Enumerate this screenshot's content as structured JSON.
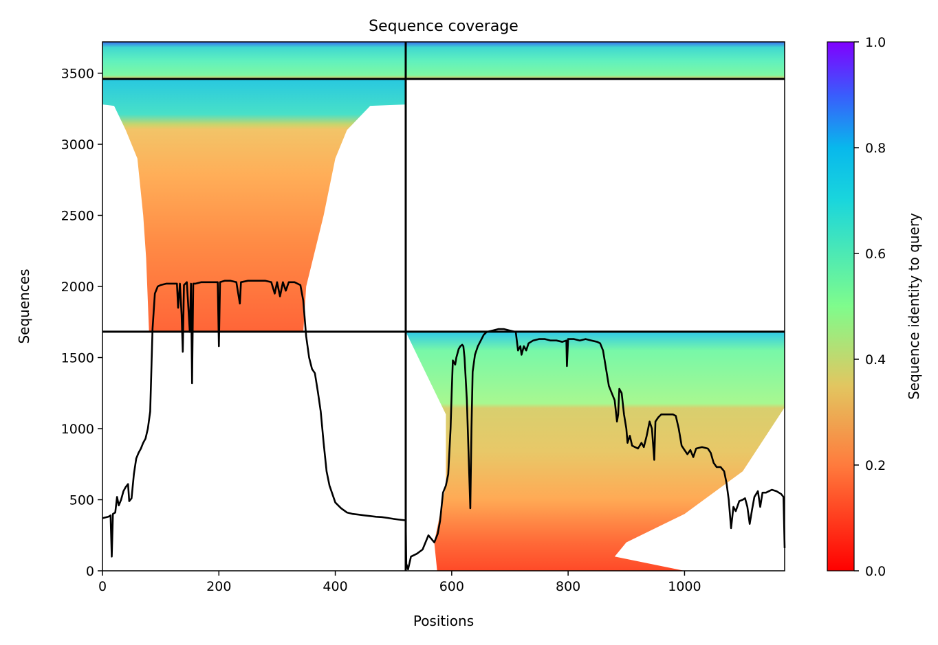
{
  "chart_data": {
    "type": "heatmap",
    "title": "Sequence coverage",
    "xlabel": "Positions",
    "ylabel": "Sequences",
    "xlim": [
      0,
      1172
    ],
    "ylim": [
      0,
      3720
    ],
    "xticks": [
      0,
      200,
      400,
      600,
      800,
      1000
    ],
    "yticks": [
      0,
      500,
      1000,
      1500,
      2000,
      2500,
      3000,
      3500
    ],
    "grid": false,
    "colorbar": {
      "label": "Sequence identity to query",
      "min": 0.0,
      "max": 1.0,
      "ticks": [
        "0.0",
        "0.2",
        "0.4",
        "0.6",
        "0.8",
        "1.0"
      ],
      "colormap": "rainbow (red to violet)"
    },
    "block_dividers": {
      "x": [
        521
      ],
      "y": [
        1682,
        3460
      ]
    },
    "coverage_blocks": [
      {
        "x_range": [
          0,
          521
        ],
        "y_range": [
          3460,
          3720
        ],
        "identity_range": [
          0.3,
          0.8
        ]
      },
      {
        "x_range": [
          521,
          1172
        ],
        "y_range": [
          3460,
          3720
        ],
        "identity_range": [
          0.3,
          0.8
        ]
      },
      {
        "x_range": [
          0,
          521
        ],
        "y_range": [
          1682,
          3460
        ],
        "identity_range": [
          0.15,
          0.7
        ]
      },
      {
        "x_range": [
          521,
          1172
        ],
        "y_range": [
          0,
          1682
        ],
        "identity_range": [
          0.05,
          0.8
        ]
      }
    ],
    "coverage_line": {
      "name": "",
      "color": "#000000",
      "points": [
        [
          0,
          370
        ],
        [
          10,
          380
        ],
        [
          14,
          390
        ],
        [
          16,
          100
        ],
        [
          18,
          400
        ],
        [
          22,
          410
        ],
        [
          25,
          520
        ],
        [
          28,
          460
        ],
        [
          32,
          500
        ],
        [
          36,
          560
        ],
        [
          40,
          590
        ],
        [
          44,
          610
        ],
        [
          46,
          490
        ],
        [
          50,
          510
        ],
        [
          54,
          680
        ],
        [
          58,
          790
        ],
        [
          62,
          830
        ],
        [
          66,
          860
        ],
        [
          70,
          900
        ],
        [
          74,
          930
        ],
        [
          78,
          1000
        ],
        [
          82,
          1120
        ],
        [
          86,
          1700
        ],
        [
          90,
          1950
        ],
        [
          95,
          2000
        ],
        [
          100,
          2010
        ],
        [
          110,
          2020
        ],
        [
          120,
          2020
        ],
        [
          128,
          2020
        ],
        [
          130,
          1850
        ],
        [
          133,
          2020
        ],
        [
          136,
          1800
        ],
        [
          138,
          1540
        ],
        [
          140,
          2010
        ],
        [
          145,
          2030
        ],
        [
          150,
          1680
        ],
        [
          152,
          2020
        ],
        [
          154,
          1320
        ],
        [
          156,
          2020
        ],
        [
          160,
          2020
        ],
        [
          170,
          2030
        ],
        [
          180,
          2030
        ],
        [
          190,
          2030
        ],
        [
          198,
          2030
        ],
        [
          200,
          1580
        ],
        [
          202,
          2030
        ],
        [
          210,
          2040
        ],
        [
          220,
          2040
        ],
        [
          230,
          2030
        ],
        [
          236,
          1880
        ],
        [
          238,
          2030
        ],
        [
          250,
          2040
        ],
        [
          260,
          2040
        ],
        [
          270,
          2040
        ],
        [
          280,
          2040
        ],
        [
          290,
          2030
        ],
        [
          296,
          1950
        ],
        [
          300,
          2030
        ],
        [
          305,
          1930
        ],
        [
          310,
          2030
        ],
        [
          315,
          1970
        ],
        [
          320,
          2030
        ],
        [
          330,
          2030
        ],
        [
          340,
          2010
        ],
        [
          345,
          1900
        ],
        [
          350,
          1650
        ],
        [
          355,
          1500
        ],
        [
          360,
          1420
        ],
        [
          365,
          1390
        ],
        [
          370,
          1260
        ],
        [
          375,
          1120
        ],
        [
          380,
          900
        ],
        [
          385,
          700
        ],
        [
          390,
          600
        ],
        [
          400,
          480
        ],
        [
          410,
          440
        ],
        [
          420,
          410
        ],
        [
          430,
          400
        ],
        [
          440,
          395
        ],
        [
          450,
          390
        ],
        [
          460,
          385
        ],
        [
          470,
          380
        ],
        [
          480,
          378
        ],
        [
          490,
          372
        ],
        [
          500,
          365
        ],
        [
          510,
          360
        ],
        [
          521,
          355
        ],
        [
          522,
          50
        ],
        [
          525,
          10
        ],
        [
          530,
          100
        ],
        [
          540,
          120
        ],
        [
          550,
          150
        ],
        [
          560,
          250
        ],
        [
          570,
          200
        ],
        [
          576,
          260
        ],
        [
          580,
          350
        ],
        [
          585,
          550
        ],
        [
          590,
          600
        ],
        [
          594,
          680
        ],
        [
          598,
          1000
        ],
        [
          600,
          1250
        ],
        [
          602,
          1480
        ],
        [
          606,
          1450
        ],
        [
          608,
          1500
        ],
        [
          612,
          1560
        ],
        [
          615,
          1580
        ],
        [
          618,
          1590
        ],
        [
          620,
          1580
        ],
        [
          622,
          1500
        ],
        [
          626,
          1200
        ],
        [
          630,
          700
        ],
        [
          632,
          440
        ],
        [
          634,
          1000
        ],
        [
          636,
          1400
        ],
        [
          640,
          1520
        ],
        [
          645,
          1580
        ],
        [
          650,
          1620
        ],
        [
          655,
          1660
        ],
        [
          660,
          1680
        ],
        [
          670,
          1690
        ],
        [
          680,
          1700
        ],
        [
          690,
          1700
        ],
        [
          700,
          1690
        ],
        [
          710,
          1680
        ],
        [
          714,
          1550
        ],
        [
          718,
          1580
        ],
        [
          720,
          1520
        ],
        [
          724,
          1580
        ],
        [
          728,
          1550
        ],
        [
          732,
          1600
        ],
        [
          740,
          1620
        ],
        [
          750,
          1630
        ],
        [
          760,
          1630
        ],
        [
          770,
          1620
        ],
        [
          780,
          1620
        ],
        [
          790,
          1610
        ],
        [
          797,
          1620
        ],
        [
          798,
          1440
        ],
        [
          800,
          1630
        ],
        [
          810,
          1630
        ],
        [
          820,
          1620
        ],
        [
          830,
          1630
        ],
        [
          840,
          1620
        ],
        [
          850,
          1610
        ],
        [
          855,
          1600
        ],
        [
          860,
          1550
        ],
        [
          866,
          1400
        ],
        [
          870,
          1300
        ],
        [
          875,
          1250
        ],
        [
          880,
          1200
        ],
        [
          884,
          1050
        ],
        [
          886,
          1100
        ],
        [
          888,
          1280
        ],
        [
          892,
          1250
        ],
        [
          896,
          1100
        ],
        [
          900,
          1000
        ],
        [
          902,
          900
        ],
        [
          906,
          950
        ],
        [
          910,
          880
        ],
        [
          915,
          870
        ],
        [
          920,
          860
        ],
        [
          926,
          900
        ],
        [
          930,
          870
        ],
        [
          935,
          950
        ],
        [
          940,
          1050
        ],
        [
          944,
          1000
        ],
        [
          948,
          780
        ],
        [
          950,
          1050
        ],
        [
          955,
          1080
        ],
        [
          960,
          1100
        ],
        [
          970,
          1100
        ],
        [
          980,
          1100
        ],
        [
          985,
          1090
        ],
        [
          990,
          1000
        ],
        [
          995,
          880
        ],
        [
          1000,
          850
        ],
        [
          1005,
          820
        ],
        [
          1010,
          850
        ],
        [
          1015,
          800
        ],
        [
          1020,
          860
        ],
        [
          1030,
          870
        ],
        [
          1040,
          860
        ],
        [
          1045,
          830
        ],
        [
          1050,
          760
        ],
        [
          1055,
          730
        ],
        [
          1062,
          730
        ],
        [
          1068,
          700
        ],
        [
          1072,
          620
        ],
        [
          1076,
          500
        ],
        [
          1080,
          300
        ],
        [
          1084,
          450
        ],
        [
          1088,
          420
        ],
        [
          1094,
          490
        ],
        [
          1100,
          500
        ],
        [
          1104,
          510
        ],
        [
          1108,
          450
        ],
        [
          1112,
          330
        ],
        [
          1116,
          430
        ],
        [
          1120,
          520
        ],
        [
          1126,
          560
        ],
        [
          1130,
          450
        ],
        [
          1134,
          550
        ],
        [
          1140,
          550
        ],
        [
          1145,
          560
        ],
        [
          1150,
          570
        ],
        [
          1158,
          560
        ],
        [
          1166,
          540
        ],
        [
          1170,
          520
        ],
        [
          1172,
          160
        ]
      ]
    }
  }
}
